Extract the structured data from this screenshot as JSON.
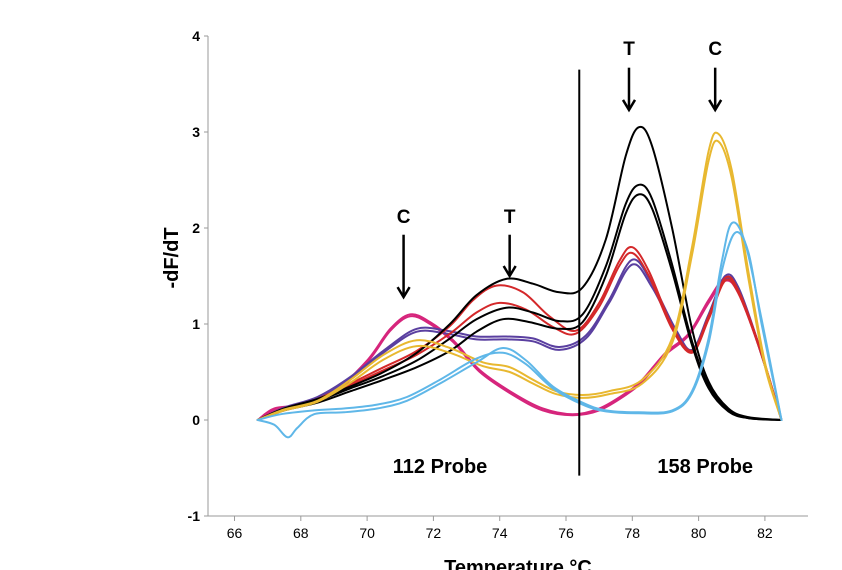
{
  "chart_data": {
    "type": "line",
    "xlabel": "Temperature °C",
    "ylabel": "-dF/dT",
    "xlim": [
      65.2,
      83.3
    ],
    "ylim": [
      -1,
      4
    ],
    "xticks": [
      "66",
      "68",
      "70",
      "72",
      "74",
      "76",
      "78",
      "80",
      "82"
    ],
    "yticks": [
      "-1",
      "0",
      "1",
      "2",
      "3",
      "4"
    ],
    "grid": false,
    "divider_x": 76.4,
    "annotations": [
      {
        "label": "C",
        "x": 71.1,
        "text_y": 2.05,
        "arrow_from": 1.93,
        "arrow_to": 1.28
      },
      {
        "label": "T",
        "x": 74.3,
        "text_y": 2.05,
        "arrow_from": 1.93,
        "arrow_to": 1.5
      },
      {
        "label": "T",
        "x": 77.9,
        "text_y": 3.8,
        "arrow_from": 3.67,
        "arrow_to": 3.23
      },
      {
        "label": "C",
        "x": 80.5,
        "text_y": 3.8,
        "arrow_from": 3.67,
        "arrow_to": 3.23
      }
    ],
    "region_labels": [
      {
        "text": "112 Probe",
        "x": 72.2,
        "y": -0.55
      },
      {
        "text": "158 Probe",
        "x": 80.2,
        "y": -0.55
      }
    ],
    "series": [
      {
        "color": "#d6257c",
        "points": [
          [
            66.7,
            0
          ],
          [
            67.2,
            0.12
          ],
          [
            68,
            0.16
          ],
          [
            69,
            0.3
          ],
          [
            70,
            0.62
          ],
          [
            70.7,
            0.95
          ],
          [
            71.3,
            1.1
          ],
          [
            71.9,
            1.02
          ],
          [
            72.6,
            0.83
          ],
          [
            73.4,
            0.52
          ],
          [
            74.4,
            0.28
          ],
          [
            75.3,
            0.12
          ],
          [
            76.2,
            0.06
          ],
          [
            77,
            0.12
          ],
          [
            77.8,
            0.28
          ],
          [
            78.3,
            0.42
          ],
          [
            79,
            0.7
          ],
          [
            79.7,
            0.9
          ],
          [
            80.3,
            1.25
          ],
          [
            80.8,
            1.48
          ],
          [
            81.2,
            1.35
          ],
          [
            81.8,
            0.8
          ],
          [
            82.5,
            0
          ]
        ]
      },
      {
        "color": "#d6257c",
        "points": [
          [
            66.7,
            0
          ],
          [
            67.2,
            0.1
          ],
          [
            68,
            0.15
          ],
          [
            69,
            0.28
          ],
          [
            70,
            0.6
          ],
          [
            70.7,
            0.93
          ],
          [
            71.3,
            1.08
          ],
          [
            71.9,
            1
          ],
          [
            72.6,
            0.81
          ],
          [
            73.4,
            0.5
          ],
          [
            74.4,
            0.26
          ],
          [
            75.3,
            0.1
          ],
          [
            76.2,
            0.05
          ],
          [
            77,
            0.1
          ],
          [
            77.8,
            0.26
          ],
          [
            78.3,
            0.4
          ],
          [
            79,
            0.68
          ],
          [
            79.7,
            0.88
          ],
          [
            80.3,
            1.22
          ],
          [
            80.8,
            1.45
          ],
          [
            81.2,
            1.32
          ],
          [
            81.8,
            0.78
          ],
          [
            82.5,
            0
          ]
        ]
      },
      {
        "color": "#5a3fa0",
        "points": [
          [
            66.7,
            0
          ],
          [
            67.5,
            0.13
          ],
          [
            68.5,
            0.24
          ],
          [
            69.5,
            0.45
          ],
          [
            70.6,
            0.75
          ],
          [
            71.5,
            0.95
          ],
          [
            72.4,
            0.93
          ],
          [
            73.3,
            0.87
          ],
          [
            74.2,
            0.87
          ],
          [
            75,
            0.85
          ],
          [
            75.8,
            0.76
          ],
          [
            76.6,
            0.88
          ],
          [
            77.3,
            1.25
          ],
          [
            78,
            1.67
          ],
          [
            78.6,
            1.42
          ],
          [
            79.3,
            0.95
          ],
          [
            79.8,
            0.73
          ],
          [
            80.3,
            1.1
          ],
          [
            80.8,
            1.5
          ],
          [
            81.2,
            1.38
          ],
          [
            81.8,
            0.8
          ],
          [
            82.5,
            0
          ]
        ]
      },
      {
        "color": "#5a3fa0",
        "points": [
          [
            66.7,
            0
          ],
          [
            67.5,
            0.12
          ],
          [
            68.5,
            0.22
          ],
          [
            69.5,
            0.43
          ],
          [
            70.6,
            0.73
          ],
          [
            71.5,
            0.92
          ],
          [
            72.4,
            0.9
          ],
          [
            73.3,
            0.84
          ],
          [
            74.2,
            0.84
          ],
          [
            75,
            0.82
          ],
          [
            75.8,
            0.73
          ],
          [
            76.6,
            0.85
          ],
          [
            77.3,
            1.22
          ],
          [
            78,
            1.62
          ],
          [
            78.6,
            1.38
          ],
          [
            79.3,
            0.92
          ],
          [
            79.8,
            0.71
          ],
          [
            80.3,
            1.08
          ],
          [
            80.8,
            1.47
          ],
          [
            81.2,
            1.35
          ],
          [
            81.8,
            0.78
          ],
          [
            82.5,
            0
          ]
        ]
      },
      {
        "color": "#d4282a",
        "points": [
          [
            66.7,
            0
          ],
          [
            67.5,
            0.12
          ],
          [
            68.5,
            0.22
          ],
          [
            69.5,
            0.38
          ],
          [
            70.5,
            0.55
          ],
          [
            71.5,
            0.72
          ],
          [
            72.5,
            0.98
          ],
          [
            73.2,
            1.25
          ],
          [
            73.9,
            1.4
          ],
          [
            74.7,
            1.33
          ],
          [
            75.5,
            1.08
          ],
          [
            76.3,
            0.93
          ],
          [
            77,
            1.22
          ],
          [
            77.6,
            1.65
          ],
          [
            78,
            1.8
          ],
          [
            78.5,
            1.55
          ],
          [
            79.2,
            0.98
          ],
          [
            79.8,
            0.72
          ],
          [
            80.3,
            1.08
          ],
          [
            80.8,
            1.48
          ],
          [
            81.2,
            1.35
          ],
          [
            81.8,
            0.8
          ],
          [
            82.5,
            0
          ]
        ]
      },
      {
        "color": "#d4282a",
        "points": [
          [
            66.7,
            0
          ],
          [
            67.5,
            0.11
          ],
          [
            68.5,
            0.2
          ],
          [
            69.5,
            0.36
          ],
          [
            70.5,
            0.52
          ],
          [
            71.5,
            0.68
          ],
          [
            72.5,
            0.9
          ],
          [
            73.3,
            1.12
          ],
          [
            74,
            1.22
          ],
          [
            74.8,
            1.15
          ],
          [
            75.6,
            0.97
          ],
          [
            76.3,
            0.9
          ],
          [
            77,
            1.18
          ],
          [
            77.6,
            1.6
          ],
          [
            78,
            1.74
          ],
          [
            78.5,
            1.5
          ],
          [
            79.2,
            0.95
          ],
          [
            79.8,
            0.7
          ],
          [
            80.3,
            1.05
          ],
          [
            80.8,
            1.45
          ],
          [
            81.2,
            1.32
          ],
          [
            81.8,
            0.78
          ],
          [
            82.5,
            0
          ]
        ]
      },
      {
        "color": "#000000",
        "points": [
          [
            66.7,
            0
          ],
          [
            67.5,
            0.12
          ],
          [
            68.5,
            0.22
          ],
          [
            69.5,
            0.35
          ],
          [
            70.5,
            0.5
          ],
          [
            71.5,
            0.7
          ],
          [
            72.5,
            1
          ],
          [
            73.3,
            1.3
          ],
          [
            74.2,
            1.47
          ],
          [
            75,
            1.42
          ],
          [
            75.8,
            1.33
          ],
          [
            76.5,
            1.38
          ],
          [
            77.2,
            1.88
          ],
          [
            77.8,
            2.75
          ],
          [
            78.2,
            3.05
          ],
          [
            78.6,
            2.85
          ],
          [
            79.2,
            2
          ],
          [
            79.8,
            0.95
          ],
          [
            80.3,
            0.4
          ],
          [
            80.9,
            0.12
          ],
          [
            81.5,
            0.03
          ],
          [
            82.5,
            0
          ]
        ]
      },
      {
        "color": "#000000",
        "points": [
          [
            66.7,
            0
          ],
          [
            67.5,
            0.11
          ],
          [
            68.5,
            0.2
          ],
          [
            69.5,
            0.33
          ],
          [
            70.5,
            0.46
          ],
          [
            71.5,
            0.62
          ],
          [
            72.5,
            0.85
          ],
          [
            73.3,
            1.05
          ],
          [
            74.2,
            1.17
          ],
          [
            75,
            1.12
          ],
          [
            75.8,
            1.03
          ],
          [
            76.5,
            1.1
          ],
          [
            77.2,
            1.6
          ],
          [
            77.8,
            2.25
          ],
          [
            78.2,
            2.45
          ],
          [
            78.6,
            2.3
          ],
          [
            79.2,
            1.62
          ],
          [
            79.8,
            0.82
          ],
          [
            80.3,
            0.36
          ],
          [
            80.9,
            0.1
          ],
          [
            81.5,
            0.02
          ],
          [
            82.5,
            0
          ]
        ]
      },
      {
        "color": "#000000",
        "points": [
          [
            66.7,
            0
          ],
          [
            67.5,
            0.1
          ],
          [
            68.5,
            0.18
          ],
          [
            69.5,
            0.3
          ],
          [
            70.5,
            0.42
          ],
          [
            71.5,
            0.55
          ],
          [
            72.5,
            0.72
          ],
          [
            73.3,
            0.92
          ],
          [
            74.1,
            1.05
          ],
          [
            74.9,
            1.02
          ],
          [
            75.8,
            0.95
          ],
          [
            76.5,
            1.02
          ],
          [
            77.2,
            1.5
          ],
          [
            77.8,
            2.15
          ],
          [
            78.2,
            2.35
          ],
          [
            78.6,
            2.2
          ],
          [
            79.2,
            1.55
          ],
          [
            79.8,
            0.78
          ],
          [
            80.3,
            0.33
          ],
          [
            80.9,
            0.09
          ],
          [
            81.5,
            0.02
          ],
          [
            82.5,
            0
          ]
        ]
      },
      {
        "color": "#e8b830",
        "points": [
          [
            66.7,
            0
          ],
          [
            67.5,
            0.11
          ],
          [
            68.5,
            0.2
          ],
          [
            69.5,
            0.42
          ],
          [
            70.5,
            0.68
          ],
          [
            71.5,
            0.83
          ],
          [
            72.5,
            0.75
          ],
          [
            73.5,
            0.6
          ],
          [
            74.3,
            0.55
          ],
          [
            75,
            0.42
          ],
          [
            75.7,
            0.3
          ],
          [
            76.5,
            0.26
          ],
          [
            77.3,
            0.3
          ],
          [
            78.3,
            0.42
          ],
          [
            79.2,
            0.85
          ],
          [
            79.8,
            1.8
          ],
          [
            80.3,
            2.8
          ],
          [
            80.6,
            2.98
          ],
          [
            81,
            2.6
          ],
          [
            81.5,
            1.55
          ],
          [
            82,
            0.6
          ],
          [
            82.5,
            0
          ]
        ]
      },
      {
        "color": "#e8b830",
        "points": [
          [
            66.7,
            0
          ],
          [
            67.5,
            0.1
          ],
          [
            68.5,
            0.19
          ],
          [
            69.5,
            0.39
          ],
          [
            70.5,
            0.63
          ],
          [
            71.5,
            0.77
          ],
          [
            72.5,
            0.7
          ],
          [
            73.5,
            0.56
          ],
          [
            74.3,
            0.5
          ],
          [
            75,
            0.38
          ],
          [
            75.7,
            0.27
          ],
          [
            76.5,
            0.23
          ],
          [
            77.3,
            0.27
          ],
          [
            78.3,
            0.38
          ],
          [
            79.2,
            0.8
          ],
          [
            79.8,
            1.72
          ],
          [
            80.3,
            2.7
          ],
          [
            80.6,
            2.9
          ],
          [
            81,
            2.52
          ],
          [
            81.5,
            1.48
          ],
          [
            82,
            0.56
          ],
          [
            82.5,
            0
          ]
        ]
      },
      {
        "color": "#5fb7e8",
        "points": [
          [
            66.7,
            0
          ],
          [
            67.2,
            -0.05
          ],
          [
            67.6,
            -0.18
          ],
          [
            67.9,
            -0.08
          ],
          [
            68.4,
            0.06
          ],
          [
            69.3,
            0.08
          ],
          [
            70.3,
            0.12
          ],
          [
            71.2,
            0.2
          ],
          [
            72.2,
            0.38
          ],
          [
            73.3,
            0.6
          ],
          [
            74.1,
            0.75
          ],
          [
            74.8,
            0.62
          ],
          [
            75.6,
            0.35
          ],
          [
            76.5,
            0.18
          ],
          [
            77.2,
            0.1
          ],
          [
            78.2,
            0.08
          ],
          [
            79.2,
            0.1
          ],
          [
            79.8,
            0.3
          ],
          [
            80.3,
            0.85
          ],
          [
            80.7,
            1.65
          ],
          [
            81,
            2.05
          ],
          [
            81.4,
            1.85
          ],
          [
            81.9,
            1.05
          ],
          [
            82.5,
            0
          ]
        ]
      },
      {
        "color": "#5fb7e8",
        "points": [
          [
            66.7,
            0
          ],
          [
            67.4,
            0.06
          ],
          [
            68.4,
            0.1
          ],
          [
            69.3,
            0.12
          ],
          [
            70.3,
            0.16
          ],
          [
            71.2,
            0.24
          ],
          [
            72.2,
            0.42
          ],
          [
            73.3,
            0.64
          ],
          [
            74.1,
            0.7
          ],
          [
            74.8,
            0.58
          ],
          [
            75.6,
            0.33
          ],
          [
            76.5,
            0.16
          ],
          [
            77.2,
            0.09
          ],
          [
            78.2,
            0.07
          ],
          [
            79.2,
            0.09
          ],
          [
            79.8,
            0.28
          ],
          [
            80.3,
            0.8
          ],
          [
            80.7,
            1.55
          ],
          [
            81.1,
            1.95
          ],
          [
            81.5,
            1.75
          ],
          [
            81.9,
            1
          ],
          [
            82.5,
            0
          ]
        ]
      }
    ]
  }
}
